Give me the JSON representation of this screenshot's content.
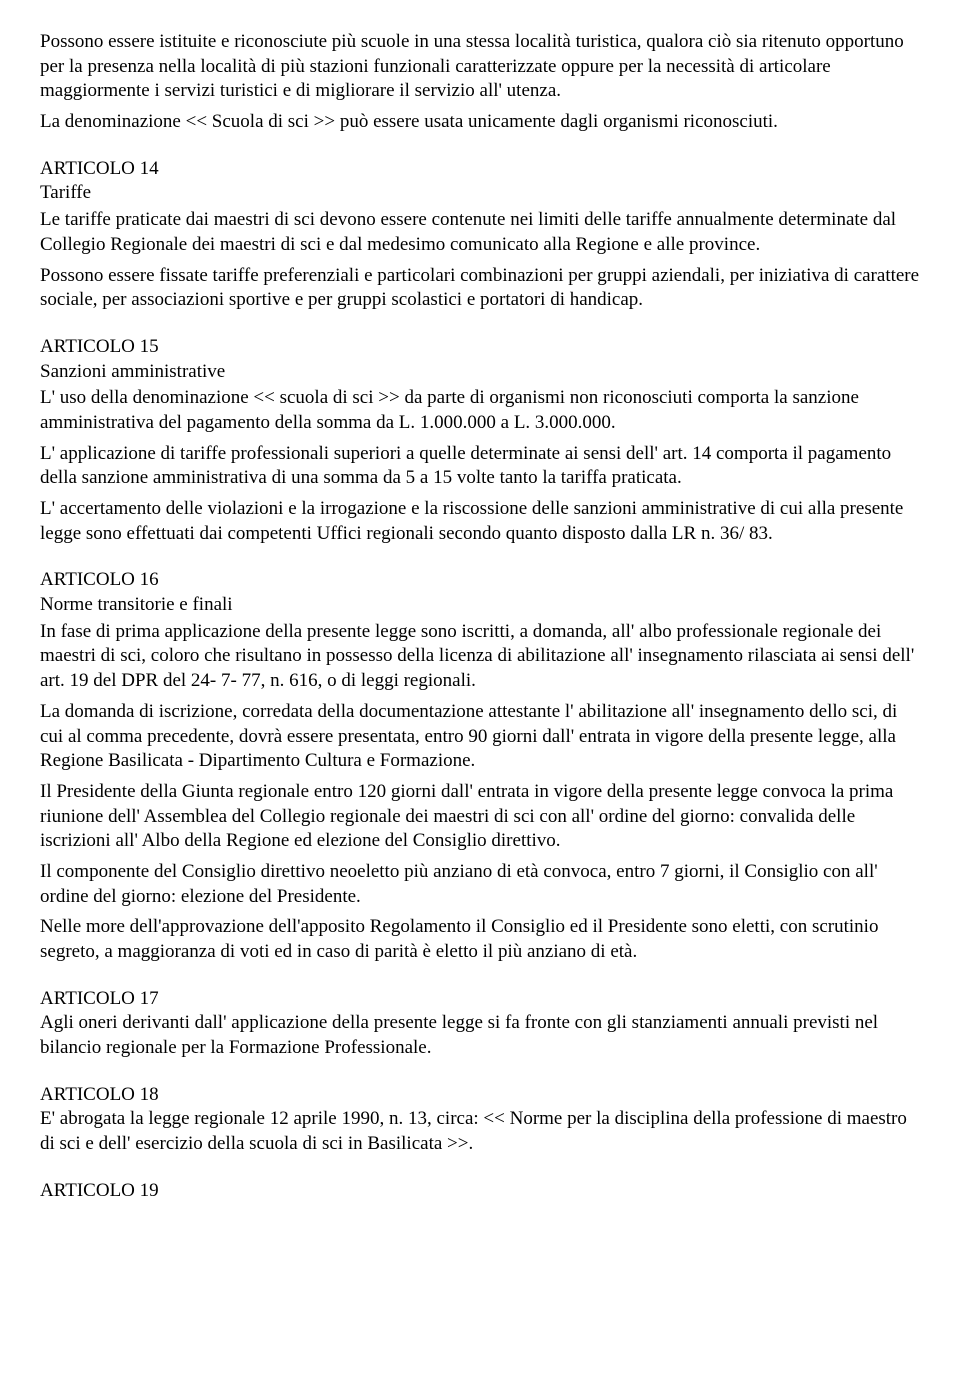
{
  "intro": {
    "p1": "   Possono essere istituite e riconosciute più scuole in una stessa località  turistica, qualora ciò  sia ritenuto opportuno per la presenza nella località  di più stazioni funzionali caratterizzate oppure per la necessità  di articolare maggiormente i servizi turistici e di migliorare il servizio all' utenza.",
    "p2": "   La denominazione << Scuola di sci >> può  essere usata unicamente dagli organismi riconosciuti."
  },
  "art14": {
    "label": " ARTICOLO 14",
    "title": " Tariffe",
    "p1": "   Le tariffe praticate dai maestri di sci devono essere contenute nei limiti delle tariffe annualmente determinate dal Collegio Regionale dei maestri di sci e dal medesimo comunicato alla Regione e alle province.",
    "p2": "   Possono essere fissate tariffe preferenziali e particolari combinazioni per gruppi aziendali, per iniziativa di carattere sociale, per associazioni sportive e per gruppi scolastici e portatori di handicap."
  },
  "art15": {
    "label": " ARTICOLO 15",
    "title": " Sanzioni amministrative",
    "p1": "   L' uso della denominazione << scuola di sci >> da parte di organismi non riconosciuti comporta la sanzione amministrativa del pagamento della somma da L. 1.000.000 a L. 3.000.000.",
    "p2": "   L' applicazione di tariffe professionali superiori a quelle determinate ai sensi dell' art. 14 comporta il pagamento della sanzione amministrativa di una somma da 5 a 15 volte tanto la tariffa praticata.",
    "p3": "   L' accertamento delle violazioni e la irrogazione e la riscossione delle sanzioni amministrative di cui alla presente legge sono effettuati dai competenti Uffici regionali secondo quanto disposto dalla LR n. 36/ 83."
  },
  "art16": {
    "label": " ARTICOLO 16",
    "title": " Norme transitorie e finali",
    "p1": "   In fase di prima applicazione della presente legge sono iscritti, a domanda, all' albo professionale regionale dei maestri di sci, coloro che risultano in possesso della licenza di abilitazione all' insegnamento rilasciata ai sensi dell' art. 19 del DPR del 24- 7- 77, n. 616, o di leggi regionali.",
    "p2": "   La domanda di iscrizione, corredata della documentazione attestante l' abilitazione all' insegnamento dello sci, di cui al comma precedente, dovrà  essere presentata, entro 90 giorni dall' entrata in vigore della presente legge, alla Regione Basilicata - Dipartimento Cultura e Formazione.",
    "p3": "   Il Presidente della Giunta regionale entro 120 giorni dall' entrata in vigore della presente legge convoca la prima riunione dell' Assemblea del Collegio regionale dei maestri di sci con all' ordine del giorno: convalida delle iscrizioni all' Albo della Regione ed elezione del Consiglio direttivo.",
    "p4": "    Il componente del Consiglio direttivo neoeletto più  anziano di età  convoca, entro 7 giorni, il Consiglio con all' ordine del giorno: elezione del Presidente.",
    "p5": "    Nelle more dell'approvazione dell'apposito Regolamento il Consiglio ed il Presidente sono eletti, con scrutinio segreto, a maggioranza di voti ed in caso di parità  è  eletto il più  anziano di età."
  },
  "art17": {
    "label": " ARTICOLO 17",
    "p1": " Agli oneri derivanti dall' applicazione della presente legge si fa fronte con gli stanziamenti annuali previsti nel bilancio regionale per la Formazione Professionale."
  },
  "art18": {
    "label": " ARTICOLO 18",
    "p1": " E' abrogata la legge regionale 12 aprile 1990, n. 13, circa: << Norme per la disciplina della professione di maestro di sci e dell' esercizio della scuola di sci in Basilicata >>."
  },
  "art19": {
    "label": " ARTICOLO 19"
  }
}
